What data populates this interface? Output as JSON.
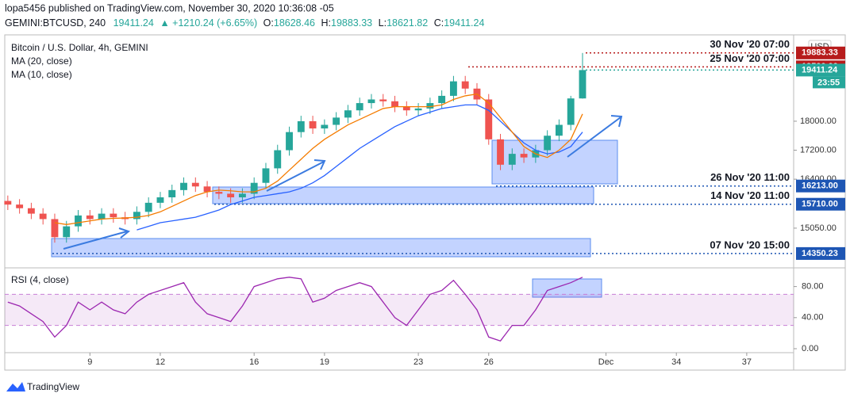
{
  "header": {
    "line1": "lopa5456 published on TradingView.com, November 30, 2020 10:36:08 -05",
    "symbol": "GEMINI:BTCUSD, 240",
    "last": "19411.24",
    "change": "▲ +1210.24 (+6.65%)",
    "o_label": "O:",
    "o": "18628.46",
    "h_label": "H:",
    "h": "19883.33",
    "l_label": "L:",
    "l": "18621.82",
    "c_label": "C:",
    "c": "19411.24"
  },
  "footer": {
    "brand": "TradingView"
  },
  "chart_data": [
    {
      "type": "candlestick",
      "title": "Bitcoin / U.S. Dollar, 4h, GEMINI",
      "currency": "USD",
      "countdown": "23:55",
      "x": [
        5.5,
        6,
        6.5,
        7,
        7.5,
        8,
        8.5,
        9,
        9.5,
        10,
        10.5,
        11,
        11.5,
        12,
        12.5,
        13,
        13.5,
        14,
        14.5,
        15,
        15.5,
        16,
        16.5,
        17,
        17.5,
        18,
        18.5,
        19,
        19.5,
        20,
        20.5,
        21,
        21.5,
        22,
        22.5,
        23,
        23.5,
        24,
        24.5,
        25,
        25.5,
        26,
        26.5,
        27,
        27.5,
        28,
        28.5,
        29,
        29.5,
        30
      ],
      "open": [
        15800,
        15700,
        15600,
        15450,
        15300,
        14800,
        15100,
        15400,
        15300,
        15450,
        15350,
        15300,
        15500,
        15750,
        15900,
        16100,
        16300,
        16200,
        16050,
        16000,
        15900,
        16000,
        16300,
        16700,
        17200,
        17700,
        18000,
        17800,
        17900,
        18100,
        18300,
        18500,
        18600,
        18550,
        18400,
        18300,
        18350,
        18500,
        18700,
        19100,
        18900,
        18600,
        17500,
        16800,
        17100,
        17000,
        17200,
        17600,
        17900,
        18628.46
      ],
      "high": [
        15950,
        15850,
        15750,
        15600,
        15450,
        15250,
        15550,
        15550,
        15600,
        15600,
        15500,
        15650,
        15900,
        16050,
        16250,
        16450,
        16450,
        16350,
        16200,
        16150,
        16150,
        16450,
        16850,
        17350,
        17850,
        18150,
        18150,
        18050,
        18250,
        18450,
        18650,
        18750,
        18750,
        18700,
        18550,
        18500,
        18650,
        18850,
        19250,
        19250,
        19050,
        18750,
        17650,
        17250,
        17250,
        17350,
        17750,
        18050,
        18700,
        19883.33
      ],
      "low": [
        15550,
        15450,
        15300,
        15150,
        14650,
        14650,
        14950,
        15150,
        15150,
        15200,
        15150,
        15150,
        15350,
        15600,
        15750,
        15950,
        16050,
        15900,
        15850,
        15750,
        15750,
        15850,
        16150,
        16550,
        17050,
        17550,
        17650,
        17650,
        17750,
        17950,
        18150,
        18350,
        18400,
        18250,
        18150,
        18150,
        18200,
        18350,
        18550,
        18750,
        18450,
        17350,
        16650,
        16650,
        16850,
        16850,
        17050,
        17450,
        17750,
        18621.82
      ],
      "close": [
        15700,
        15600,
        15450,
        15300,
        14800,
        15100,
        15400,
        15300,
        15450,
        15350,
        15300,
        15500,
        15750,
        15900,
        16100,
        16300,
        16200,
        16050,
        16000,
        15900,
        16000,
        16300,
        16700,
        17200,
        17700,
        18000,
        17800,
        17900,
        18100,
        18300,
        18500,
        18600,
        18550,
        18400,
        18300,
        18350,
        18500,
        18700,
        19100,
        18900,
        18600,
        17500,
        16800,
        17100,
        17000,
        17200,
        17600,
        17900,
        18628.46,
        19411.24
      ],
      "up_color": "#26a69a",
      "down_color": "#ef5350",
      "series": [
        {
          "name": "MA (20, close)",
          "color": "#2962ff",
          "values": [
            null,
            null,
            null,
            null,
            null,
            null,
            null,
            null,
            null,
            null,
            null,
            15000,
            15100,
            15200,
            15250,
            15300,
            15350,
            15450,
            15550,
            15700,
            15800,
            15900,
            15950,
            16000,
            16050,
            16150,
            16300,
            16500,
            16750,
            17000,
            17250,
            17450,
            17650,
            17850,
            18000,
            18150,
            18250,
            18350,
            18400,
            18450,
            18450,
            18300,
            18000,
            17700,
            17400,
            17200,
            17100,
            17150,
            17300,
            17700
          ]
        },
        {
          "name": "MA (10, close)",
          "color": "#f57c00",
          "values": [
            null,
            null,
            null,
            null,
            15200,
            15150,
            15200,
            15250,
            15300,
            15320,
            15330,
            15350,
            15400,
            15500,
            15650,
            15800,
            15950,
            16050,
            16100,
            16080,
            16050,
            16050,
            16150,
            16350,
            16650,
            16950,
            17250,
            17500,
            17700,
            17900,
            18050,
            18200,
            18350,
            18400,
            18400,
            18400,
            18400,
            18450,
            18600,
            18700,
            18750,
            18500,
            18100,
            17700,
            17300,
            17100,
            17000,
            17200,
            17500,
            18200
          ]
        }
      ],
      "xlim": [
        5.37,
        39
      ],
      "xticks": [
        9,
        12,
        16,
        19,
        23,
        26,
        {
          "value": 31,
          "label": "Dec"
        },
        34,
        37
      ],
      "ylim": [
        14020,
        20360
      ],
      "yticks": [
        {
          "value": 15050,
          "label": "15050.00"
        },
        {
          "value": 16400,
          "label": "16400.00"
        },
        {
          "value": 17200,
          "label": "17200.00"
        },
        {
          "value": 18000,
          "label": "18000.00"
        }
      ],
      "price_labels": [
        {
          "value": 19883.33,
          "label": "19883.33",
          "color": "#b71c1c",
          "time": "30 Nov '20 07:00"
        },
        {
          "value": 19500,
          "label": "19500.00",
          "color": "#b71c1c",
          "time": "25 Nov '20 07:00"
        },
        {
          "value": 19411.24,
          "label": "19411.24",
          "color": "#26a69a"
        },
        {
          "value": 16213,
          "label": "16213.00",
          "color": "#1e56b4",
          "time": "26 Nov '20 11:00"
        },
        {
          "value": 15710,
          "label": "15710.00",
          "color": "#1e56b4",
          "time": "14 Nov '20 11:00"
        },
        {
          "value": 14350.23,
          "label": "14350.23",
          "color": "#1e56b4",
          "time": "07 Nov '20 15:00"
        }
      ]
    },
    {
      "type": "line",
      "title": "RSI (4, close)",
      "color": "#9c27b0",
      "values": [
        60,
        55,
        45,
        35,
        15,
        30,
        60,
        50,
        60,
        50,
        45,
        60,
        70,
        75,
        80,
        85,
        60,
        45,
        40,
        35,
        55,
        80,
        85,
        90,
        92,
        90,
        60,
        65,
        75,
        80,
        85,
        80,
        60,
        40,
        30,
        50,
        70,
        75,
        88,
        70,
        50,
        15,
        10,
        30,
        30,
        50,
        75,
        80,
        85,
        92
      ],
      "ylim": [
        0,
        100
      ],
      "yticks": [
        {
          "value": 0,
          "label": "0.00"
        },
        {
          "value": 40,
          "label": "40.00"
        },
        {
          "value": 80,
          "label": "80.00"
        }
      ],
      "band": [
        30,
        70
      ]
    }
  ]
}
